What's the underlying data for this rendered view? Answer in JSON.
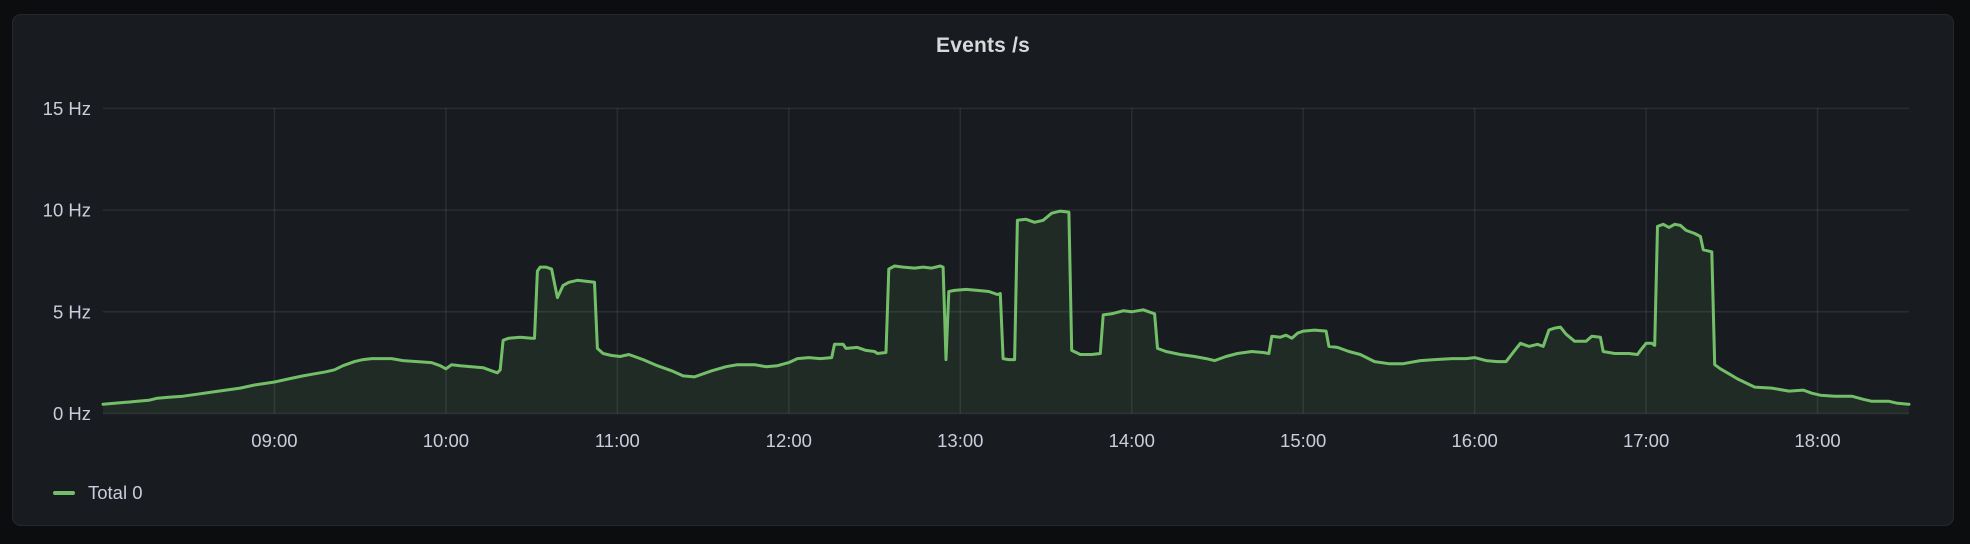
{
  "panel": {
    "title": "Events /s",
    "legend": {
      "items": [
        {
          "label": "Total 0",
          "color": "#73BF69"
        }
      ]
    }
  },
  "colors": {
    "page_bg": "#0C0D0F",
    "panel_bg": "#181B1F",
    "panel_border": "#25282E",
    "grid": "rgba(204,204,220,0.10)",
    "tick_text": "#CCCCDC",
    "title_text": "#D8D9DA",
    "series_green": "#73BF69"
  },
  "chart_data": {
    "type": "area",
    "title": "Events /s",
    "unit": "Hz",
    "grid": true,
    "legend_position": "bottom-left",
    "x_range": [
      "08:00",
      "18:32"
    ],
    "y_range": [
      0,
      15
    ],
    "x_ticks": [
      "09:00",
      "10:00",
      "11:00",
      "12:00",
      "13:00",
      "14:00",
      "15:00",
      "16:00",
      "17:00",
      "18:00"
    ],
    "y_ticks": [
      {
        "value": 0,
        "label": "0 Hz"
      },
      {
        "value": 5,
        "label": "5 Hz"
      },
      {
        "value": 10,
        "label": "10 Hz"
      },
      {
        "value": 15,
        "label": "15 Hz"
      }
    ],
    "series": [
      {
        "name": "Total 0",
        "color": "#73BF69",
        "fill_opacity": 0.1,
        "points": [
          [
            "08:00",
            0.45
          ],
          [
            "08:04",
            0.5
          ],
          [
            "08:08",
            0.55
          ],
          [
            "08:12",
            0.6
          ],
          [
            "08:16",
            0.65
          ],
          [
            "08:19",
            0.75
          ],
          [
            "08:23",
            0.8
          ],
          [
            "08:28",
            0.85
          ],
          [
            "08:33",
            0.95
          ],
          [
            "08:38",
            1.05
          ],
          [
            "08:43",
            1.15
          ],
          [
            "08:48",
            1.25
          ],
          [
            "08:53",
            1.4
          ],
          [
            "09:00",
            1.55
          ],
          [
            "09:05",
            1.7
          ],
          [
            "09:10",
            1.85
          ],
          [
            "09:14",
            1.95
          ],
          [
            "09:18",
            2.05
          ],
          [
            "09:21",
            2.15
          ],
          [
            "09:24",
            2.35
          ],
          [
            "09:28",
            2.55
          ],
          [
            "09:31",
            2.65
          ],
          [
            "09:34",
            2.7
          ],
          [
            "09:41",
            2.7
          ],
          [
            "09:45",
            2.6
          ],
          [
            "09:50",
            2.55
          ],
          [
            "09:55",
            2.5
          ],
          [
            "09:58",
            2.35
          ],
          [
            "10:00",
            2.2
          ],
          [
            "10:02",
            2.4
          ],
          [
            "10:05",
            2.35
          ],
          [
            "10:09",
            2.3
          ],
          [
            "10:13",
            2.25
          ],
          [
            "10:16",
            2.1
          ],
          [
            "10:18",
            2.0
          ],
          [
            "10:19",
            2.15
          ],
          [
            "10:20",
            3.6
          ],
          [
            "10:22",
            3.7
          ],
          [
            "10:26",
            3.75
          ],
          [
            "10:30",
            3.7
          ],
          [
            "10:31",
            3.7
          ],
          [
            "10:32",
            7.0
          ],
          [
            "10:33",
            7.2
          ],
          [
            "10:35",
            7.2
          ],
          [
            "10:37",
            7.1
          ],
          [
            "10:39",
            5.7
          ],
          [
            "10:41",
            6.3
          ],
          [
            "10:43",
            6.45
          ],
          [
            "10:46",
            6.55
          ],
          [
            "10:49",
            6.5
          ],
          [
            "10:52",
            6.45
          ],
          [
            "10:53",
            3.2
          ],
          [
            "10:55",
            2.95
          ],
          [
            "10:58",
            2.85
          ],
          [
            "11:01",
            2.8
          ],
          [
            "11:04",
            2.9
          ],
          [
            "11:06",
            2.8
          ],
          [
            "11:09",
            2.65
          ],
          [
            "11:14",
            2.35
          ],
          [
            "11:19",
            2.1
          ],
          [
            "11:23",
            1.85
          ],
          [
            "11:27",
            1.8
          ],
          [
            "11:30",
            1.95
          ],
          [
            "11:33",
            2.1
          ],
          [
            "11:38",
            2.3
          ],
          [
            "11:42",
            2.4
          ],
          [
            "11:48",
            2.4
          ],
          [
            "11:52",
            2.3
          ],
          [
            "11:56",
            2.35
          ],
          [
            "12:00",
            2.5
          ],
          [
            "12:03",
            2.7
          ],
          [
            "12:07",
            2.75
          ],
          [
            "12:11",
            2.7
          ],
          [
            "12:15",
            2.75
          ],
          [
            "12:16",
            3.4
          ],
          [
            "12:19",
            3.4
          ],
          [
            "12:20",
            3.2
          ],
          [
            "12:24",
            3.25
          ],
          [
            "12:27",
            3.1
          ],
          [
            "12:30",
            3.05
          ],
          [
            "12:31",
            2.95
          ],
          [
            "12:34",
            3.0
          ],
          [
            "12:35",
            7.1
          ],
          [
            "12:37",
            7.25
          ],
          [
            "12:40",
            7.2
          ],
          [
            "12:44",
            7.15
          ],
          [
            "12:47",
            7.2
          ],
          [
            "12:50",
            7.15
          ],
          [
            "12:53",
            7.25
          ],
          [
            "12:54",
            7.2
          ],
          [
            "12:55",
            2.65
          ],
          [
            "12:56",
            6.0
          ],
          [
            "12:58",
            6.05
          ],
          [
            "13:02",
            6.1
          ],
          [
            "13:06",
            6.05
          ],
          [
            "13:10",
            6.0
          ],
          [
            "13:13",
            5.85
          ],
          [
            "13:14",
            5.9
          ],
          [
            "13:15",
            2.7
          ],
          [
            "13:17",
            2.65
          ],
          [
            "13:19",
            2.65
          ],
          [
            "13:20",
            9.5
          ],
          [
            "13:23",
            9.55
          ],
          [
            "13:26",
            9.4
          ],
          [
            "13:29",
            9.5
          ],
          [
            "13:32",
            9.85
          ],
          [
            "13:35",
            9.95
          ],
          [
            "13:38",
            9.9
          ],
          [
            "13:39",
            3.1
          ],
          [
            "13:42",
            2.9
          ],
          [
            "13:46",
            2.9
          ],
          [
            "13:49",
            2.95
          ],
          [
            "13:50",
            4.85
          ],
          [
            "13:53",
            4.9
          ],
          [
            "13:57",
            5.05
          ],
          [
            "14:00",
            5.0
          ],
          [
            "14:04",
            5.1
          ],
          [
            "14:07",
            4.95
          ],
          [
            "14:08",
            4.9
          ],
          [
            "14:09",
            3.2
          ],
          [
            "14:12",
            3.05
          ],
          [
            "14:17",
            2.9
          ],
          [
            "14:22",
            2.8
          ],
          [
            "14:26",
            2.7
          ],
          [
            "14:29",
            2.6
          ],
          [
            "14:33",
            2.8
          ],
          [
            "14:37",
            2.95
          ],
          [
            "14:42",
            3.05
          ],
          [
            "14:46",
            3.0
          ],
          [
            "14:48",
            2.95
          ],
          [
            "14:49",
            3.8
          ],
          [
            "14:52",
            3.75
          ],
          [
            "14:54",
            3.85
          ],
          [
            "14:56",
            3.7
          ],
          [
            "14:58",
            3.95
          ],
          [
            "15:00",
            4.05
          ],
          [
            "15:04",
            4.1
          ],
          [
            "15:08",
            4.05
          ],
          [
            "15:09",
            3.3
          ],
          [
            "15:12",
            3.25
          ],
          [
            "15:16",
            3.05
          ],
          [
            "15:20",
            2.9
          ],
          [
            "15:25",
            2.55
          ],
          [
            "15:30",
            2.45
          ],
          [
            "15:35",
            2.45
          ],
          [
            "15:41",
            2.6
          ],
          [
            "15:46",
            2.65
          ],
          [
            "15:52",
            2.7
          ],
          [
            "15:57",
            2.7
          ],
          [
            "16:00",
            2.75
          ],
          [
            "16:04",
            2.6
          ],
          [
            "16:08",
            2.55
          ],
          [
            "16:11",
            2.55
          ],
          [
            "16:14",
            3.1
          ],
          [
            "16:16",
            3.45
          ],
          [
            "16:19",
            3.3
          ],
          [
            "16:22",
            3.4
          ],
          [
            "16:24",
            3.3
          ],
          [
            "16:26",
            4.1
          ],
          [
            "16:28",
            4.2
          ],
          [
            "16:30",
            4.25
          ],
          [
            "16:32",
            3.9
          ],
          [
            "16:35",
            3.55
          ],
          [
            "16:39",
            3.55
          ],
          [
            "16:41",
            3.8
          ],
          [
            "16:44",
            3.75
          ],
          [
            "16:45",
            3.05
          ],
          [
            "16:49",
            2.95
          ],
          [
            "16:54",
            2.95
          ],
          [
            "16:57",
            2.9
          ],
          [
            "16:58",
            3.1
          ],
          [
            "17:00",
            3.45
          ],
          [
            "17:02",
            3.45
          ],
          [
            "17:03",
            3.35
          ],
          [
            "17:04",
            9.2
          ],
          [
            "17:06",
            9.3
          ],
          [
            "17:08",
            9.15
          ],
          [
            "17:10",
            9.3
          ],
          [
            "17:12",
            9.25
          ],
          [
            "17:14",
            9.0
          ],
          [
            "17:17",
            8.85
          ],
          [
            "17:19",
            8.7
          ],
          [
            "17:20",
            8.05
          ],
          [
            "17:23",
            7.95
          ],
          [
            "17:24",
            2.4
          ],
          [
            "17:26",
            2.2
          ],
          [
            "17:29",
            1.95
          ],
          [
            "17:32",
            1.7
          ],
          [
            "17:35",
            1.5
          ],
          [
            "17:38",
            1.3
          ],
          [
            "17:44",
            1.25
          ],
          [
            "17:50",
            1.1
          ],
          [
            "17:55",
            1.15
          ],
          [
            "17:58",
            1.0
          ],
          [
            "18:01",
            0.9
          ],
          [
            "18:06",
            0.85
          ],
          [
            "18:12",
            0.85
          ],
          [
            "18:16",
            0.7
          ],
          [
            "18:19",
            0.6
          ],
          [
            "18:25",
            0.6
          ],
          [
            "18:28",
            0.5
          ],
          [
            "18:32",
            0.45
          ]
        ]
      }
    ]
  }
}
